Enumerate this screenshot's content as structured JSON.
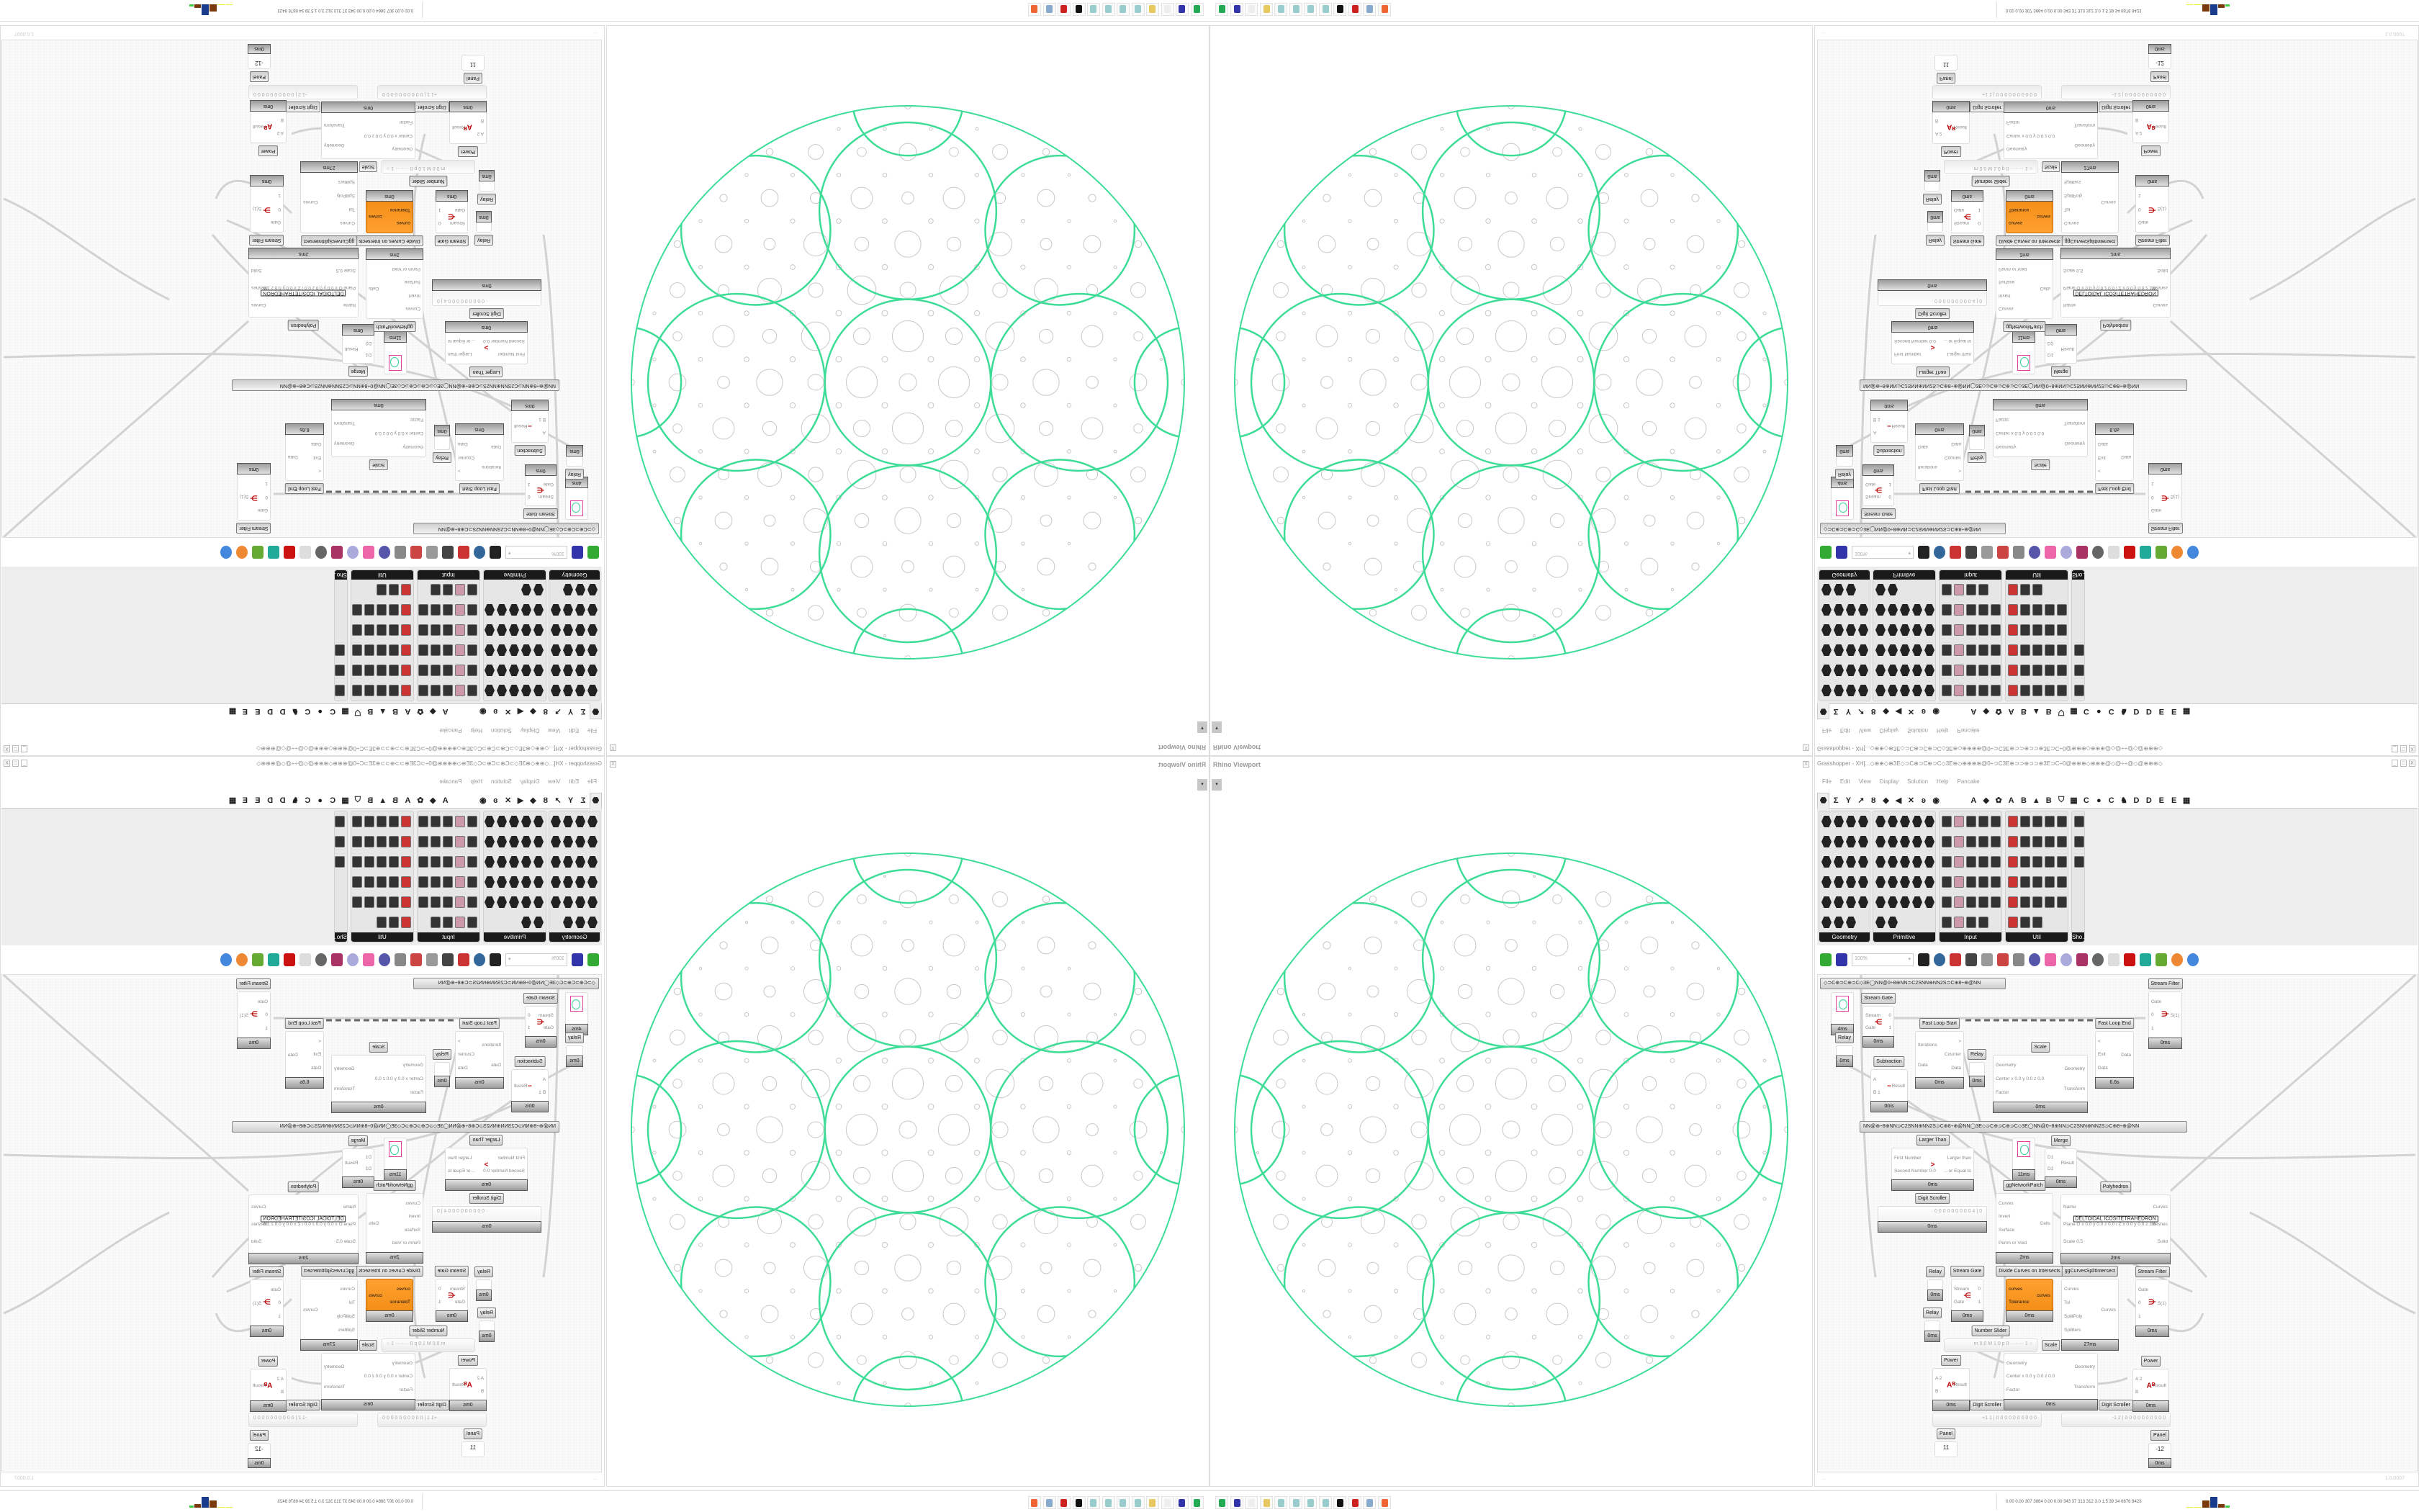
{
  "rhino": {
    "title": "Rhino Viewport",
    "close": "X",
    "dropdown": "▾"
  },
  "grasshopper": {
    "title": "Grasshopper - XH[...◇⊕⊕◇⊕3E◇⊃C⊕⊃C⊕⊃C◇3E⊕◇⊕⊕⊕⊕@0÷⊃C3E⊕⊃⊃⊕⊃⊃⊕3E⊃C÷0@⊕⊕⊕◇⊕⊕⊕@◇@÷÷@◇@⊕⊕⊕◇⊕⊕⊕@0÷⊃C3E⊕⊃⊃...",
    "window_buttons": [
      "_",
      "□",
      "X"
    ],
    "menu": [
      "File",
      "Edit",
      "View",
      "Display",
      "Solution",
      "Help",
      "Pancake"
    ],
    "tabs": [
      "⬣",
      "Σ",
      "Y",
      "↗",
      "Ȣ",
      "◆",
      "◀",
      "✕",
      "ʚ",
      "◉",
      "",
      "",
      "A",
      "◆",
      "✿",
      "A",
      "B",
      "▲",
      "B",
      "⛉",
      "▦",
      "C",
      "●",
      "C",
      "♞",
      "D",
      "D",
      "E",
      "E",
      "▦"
    ],
    "ribbon_panels": [
      {
        "name": "Geometry",
        "icon_count": 23
      },
      {
        "name": "Primitive",
        "icon_count": 27
      },
      {
        "name": "Input",
        "icon_count": 29
      },
      {
        "name": "Util",
        "icon_count": 28
      },
      {
        "name": "Sho...",
        "icon_count": 3
      }
    ],
    "toolbar": {
      "zoom": "100%"
    },
    "groups": [
      "◇⊃C⊕⊃C⊕⊃C◇3E◯NN@0÷8⊕NN⊃C2SNN⊕NN2S⊃C⊕8÷⊕@NN",
      "NN@⊕÷8⊕NN⊃C2SNN⊕NN2S⊃C⊕8÷⊕@NN◯3E◇⊃C⊕⊃C⊕⊃C◇3E◯NN@0÷8⊕NN⊃C2SNN⊕NN2S⊃C⊕8÷⊕@NN"
    ],
    "components": [
      {
        "kind": "swatch",
        "label": "",
        "time": "4ms"
      },
      {
        "kind": "relay",
        "label": "Relay",
        "time": "0ms"
      },
      {
        "kind": "comp",
        "label": "Stream Gate",
        "inputs": [
          "Stream",
          "Gate"
        ],
        "outputs": [
          "0",
          "1"
        ],
        "glyph": "⋲",
        "time": "0ms"
      },
      {
        "kind": "comp",
        "label": "Subtraction",
        "inputs": [
          "A",
          "B 1"
        ],
        "outputs": [
          "Result"
        ],
        "glyph": "−",
        "time": "0ms"
      },
      {
        "kind": "comp",
        "label": "Fast Loop Start",
        "inputs": [
          "Iterations",
          "Data"
        ],
        "outputs": [
          ">",
          "Counter",
          "Data"
        ],
        "time": "0ms"
      },
      {
        "kind": "relay",
        "label": "Relay",
        "time": "0ms"
      },
      {
        "kind": "comp",
        "label": "Scale",
        "inputs": [
          "Geometry",
          "Center x 0.0 y 0.0 z 0.0",
          "Factor"
        ],
        "outputs": [
          "Geometry",
          "Transform"
        ],
        "time": "0ms"
      },
      {
        "kind": "comp",
        "label": "Fast Loop End",
        "inputs": [
          "<",
          "Exit",
          "Data"
        ],
        "outputs": [
          "Data"
        ],
        "time": "6.6s"
      },
      {
        "kind": "comp",
        "label": "Stream Filter",
        "inputs": [
          "Gate",
          "0",
          "1"
        ],
        "outputs": [
          "S(1)"
        ],
        "glyph": "⋺",
        "time": "0ms"
      },
      {
        "kind": "comp",
        "label": "Larger Than",
        "inputs": [
          "First Number",
          "Second Number 0.0"
        ],
        "outputs": [
          "Larger than",
          "... or Equal to"
        ],
        "glyph": ">",
        "time": "0ms"
      },
      {
        "kind": "swatch",
        "label": "",
        "time": "11ms"
      },
      {
        "kind": "comp",
        "label": "Merge",
        "inputs": [
          "D1",
          "D2"
        ],
        "outputs": [
          "Result"
        ],
        "time": "0ms"
      },
      {
        "kind": "slider",
        "label": "Digit Scroller",
        "value": "· 0 0 0 0 0 0 0 0 0 4 | 0",
        "time": "0ms"
      },
      {
        "kind": "comp",
        "label": "ggNetworkPatch",
        "inputs": [
          "Curves",
          "Invert",
          "Surface",
          "Perim or Void"
        ],
        "outputs": [
          "Cells"
        ],
        "time": "2ms"
      },
      {
        "kind": "comp",
        "label": "Polyhedron",
        "inputs": [
          "Name",
          "Plane  O x 0.0 y 0.0 z 0.0 / Z x 0.0 y 0.0 z 1.0",
          "Scale 0.5"
        ],
        "outputs": [
          "Curves",
          "Meshes",
          "Solid"
        ],
        "value": "DELTOIDAL ICOSITETRAHEDRON",
        "time": "2ms"
      },
      {
        "kind": "relay",
        "label": "Relay",
        "time": "0ms"
      },
      {
        "kind": "relay",
        "label": "Relay",
        "time": "0ms"
      },
      {
        "kind": "comp",
        "label": "Stream Gate",
        "inputs": [
          "Stream",
          "Gate"
        ],
        "outputs": [
          "0",
          "1"
        ],
        "glyph": "⋲",
        "time": "0ms"
      },
      {
        "kind": "orange",
        "label": "Divide Curves on Intersects",
        "inputs": [
          "curves",
          "Tolerance"
        ],
        "outputs": [
          "curves"
        ],
        "time": "0ms"
      },
      {
        "kind": "comp",
        "label": "ggCurvesSplitIntersect",
        "inputs": [
          "Curves",
          "Tol",
          "SplitPoly",
          "Splitters"
        ],
        "outputs": [
          "Curves"
        ],
        "time": "27ms"
      },
      {
        "kind": "comp",
        "label": "Stream Filter",
        "inputs": [
          "Gate",
          "0",
          "1"
        ],
        "outputs": [
          "S(1)"
        ],
        "glyph": "⋺",
        "time": "0ms"
      },
      {
        "kind": "slider",
        "label": "Number Slider",
        "value": "m 0.0  M 1.0  p 0  ········ 1 ○"
      },
      {
        "kind": "comp",
        "label": "Scale",
        "inputs": [
          "Geometry",
          "Center x 0.0 y 0.0 z 0.0",
          "Factor"
        ],
        "outputs": [
          "Geometry",
          "Transform"
        ],
        "time": "0ms"
      },
      {
        "kind": "comp",
        "label": "Power",
        "inputs": [
          "A 2",
          "B"
        ],
        "outputs": [
          "Result"
        ],
        "glyph": "Aᴮ",
        "time": "0ms"
      },
      {
        "kind": "slider",
        "label": "Digit Scroller",
        "value": "+1 1 | 0 0 0 0 0 0 0 0 0 0"
      },
      {
        "kind": "comp",
        "label": "Power",
        "inputs": [
          "A 2",
          "B"
        ],
        "outputs": [
          "Result"
        ],
        "glyph": "Aᴮ",
        "time": "0ms"
      },
      {
        "kind": "slider",
        "label": "Digit Scroller",
        "value": "-1 2 | 0 0 0 0 0 0 0 0 0 0"
      },
      {
        "kind": "panel",
        "label": "Panel",
        "value": "11"
      },
      {
        "kind": "panel",
        "label": "Panel",
        "value": "-12",
        "time": "0ms"
      }
    ],
    "status": {
      "left": "...",
      "version": "1.0.0007"
    }
  },
  "taskbar": {
    "icons": [
      "grasshopper-app-icon",
      "floppy-64-icon",
      "blank-icon",
      "folder-icon",
      "notepad-icon",
      "notepad-icon",
      "notepad-icon",
      "notepad-icon",
      "inkscape-icon",
      "red-app-icon",
      "calculator-icon",
      "firefox-icon"
    ],
    "icon_colors": [
      "#2a5",
      "#33a",
      "#eee",
      "#e8c860",
      "#9cc",
      "#9cc",
      "#9cc",
      "#9cc",
      "#111",
      "#c22",
      "#8ac",
      "#e63"
    ],
    "tray": "0.00 0.00 307 3864 0.00 0.00 343  37  313  312  3.0  1.5  39  34  6676 8423"
  },
  "colors": {
    "accent_green": "#3ddc97",
    "pattern_gray": "#c8c8c8",
    "component_orange": "#f7931e"
  }
}
